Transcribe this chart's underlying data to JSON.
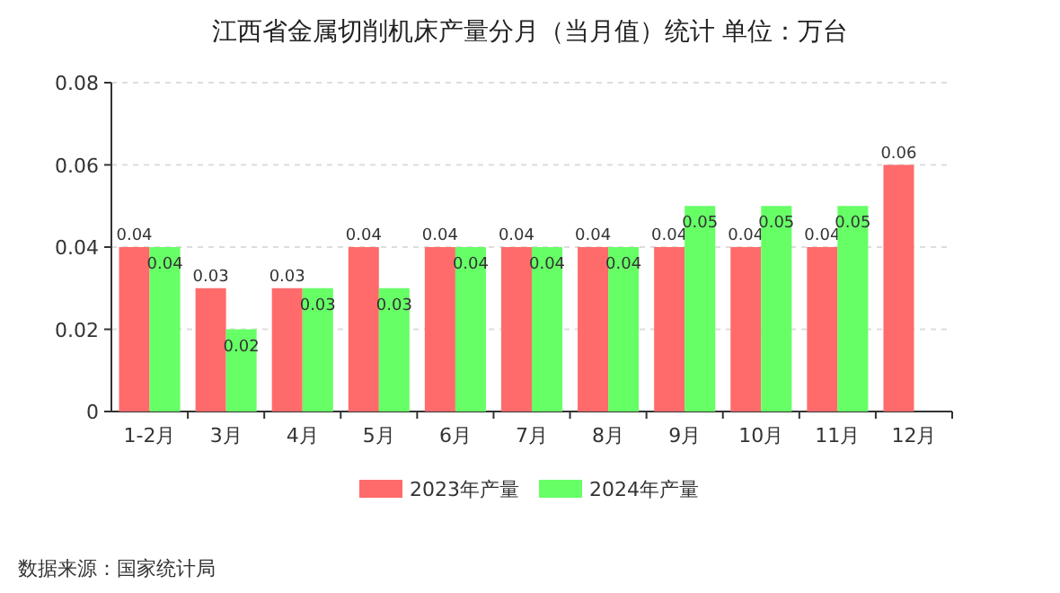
{
  "chart_data": {
    "type": "bar",
    "title": "江西省金属切削机床产量分月（当月值）统计 单位：万台",
    "categories": [
      "1-2月",
      "3月",
      "4月",
      "5月",
      "6月",
      "7月",
      "8月",
      "9月",
      "10月",
      "11月",
      "12月"
    ],
    "series": [
      {
        "name": "2023年产量",
        "color": "#ff6b6b",
        "values": [
          0.04,
          0.03,
          0.03,
          0.04,
          0.04,
          0.04,
          0.04,
          0.04,
          0.04,
          0.04,
          0.06
        ]
      },
      {
        "name": "2024年产量",
        "color": "#66ff66",
        "values": [
          0.04,
          0.02,
          0.03,
          0.03,
          0.04,
          0.04,
          0.04,
          0.05,
          0.05,
          0.05,
          null
        ]
      }
    ],
    "ylim": [
      0,
      0.08
    ],
    "yticks": [
      0,
      0.02,
      0.04,
      0.06,
      0.08
    ],
    "grid": "y",
    "legend": "bottom",
    "data_labels": true,
    "annotations": [
      "数据来源：国家统计局"
    ]
  }
}
